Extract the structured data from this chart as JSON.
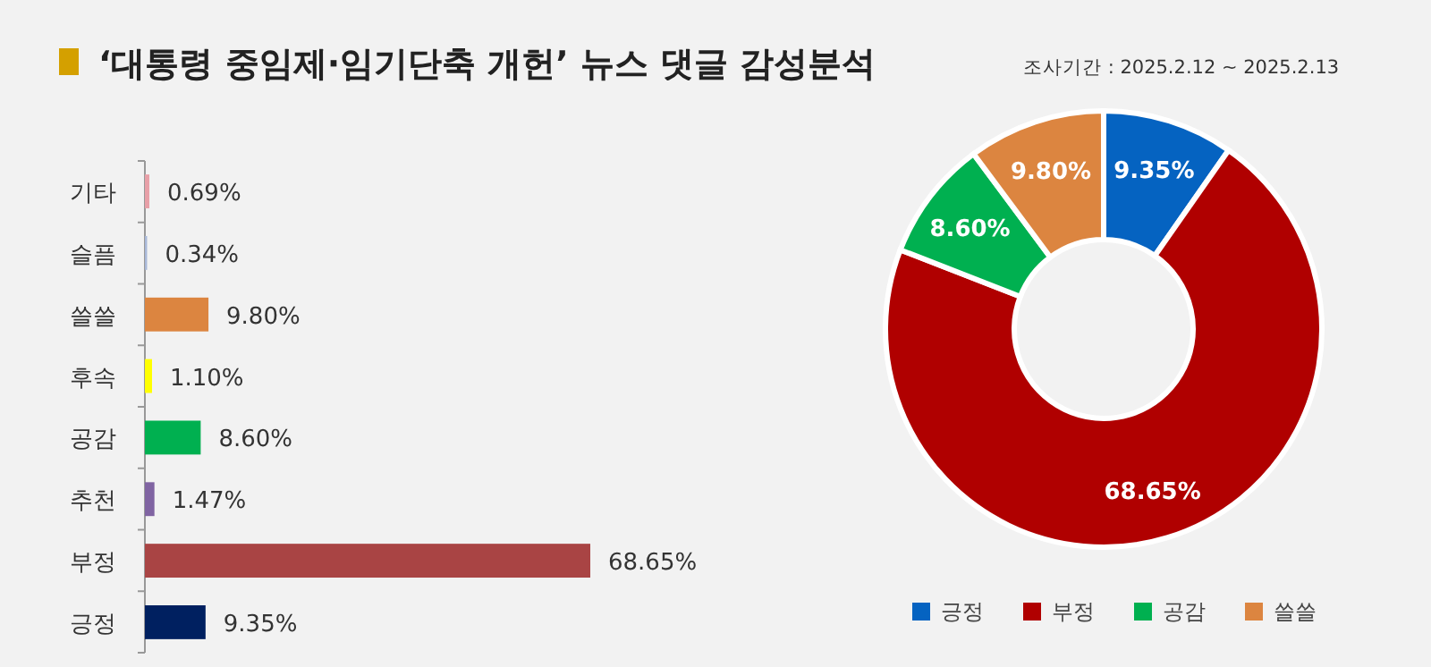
{
  "chart_data": [
    {
      "type": "bar",
      "orientation": "horizontal",
      "title": "‘대통령 중임제·임기단축 개헌’ 뉴스 댓글 감성분석",
      "categories": [
        "기타",
        "슬픔",
        "쓸쓸",
        "후속",
        "공감",
        "추천",
        "부정",
        "긍정"
      ],
      "values": [
        0.69,
        0.34,
        9.8,
        1.1,
        8.6,
        1.47,
        68.65,
        9.35
      ],
      "value_labels": [
        "0.69%",
        "0.34%",
        "9.80%",
        "1.10%",
        "8.60%",
        "1.47%",
        "68.65%",
        "9.35%"
      ],
      "colors": [
        "#e8a0a8",
        "#a8b8d8",
        "#dc8540",
        "#ffff00",
        "#00b050",
        "#8064a2",
        "#a94444",
        "#002060"
      ]
    },
    {
      "type": "donut",
      "subtitle": "조사기간 : 2025.2.12 ~ 2025.2.13",
      "categories": [
        "긍정",
        "부정",
        "공감",
        "쓸쓸"
      ],
      "values": [
        9.35,
        68.65,
        8.6,
        9.8
      ],
      "value_labels": [
        "9.35%",
        "68.65%",
        "8.60%",
        "9.80%"
      ],
      "colors": [
        "#0563c1",
        "#b00000",
        "#00b050",
        "#dc8540"
      ],
      "legend": "bottom"
    }
  ]
}
